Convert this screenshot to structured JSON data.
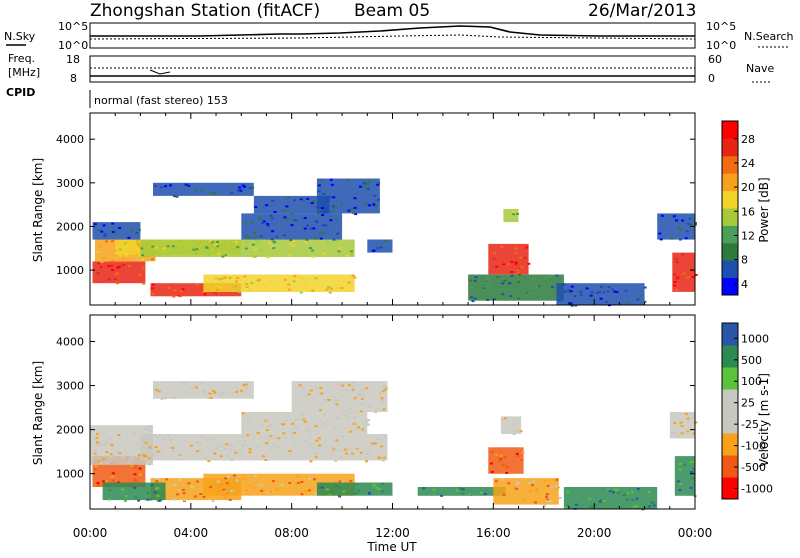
{
  "header": {
    "station": "Zhongshan Station (fitACF)",
    "beam": "Beam 05",
    "date": "26/Mar/2013"
  },
  "top_panels": {
    "nsky_label": "N.Sky",
    "nsearch_label": "N.Search",
    "freq_label_1": "Freq.",
    "freq_label_2": "[MHz]",
    "nave_label": "Nave",
    "cpid_label": "CPID",
    "cpid_value": "normal (fast stereo) 153",
    "noise_left_ticks": [
      "10^5",
      "10^0"
    ],
    "noise_right_ticks": [
      "10^5",
      "10^0"
    ],
    "freq_ticks": [
      "18",
      "8"
    ],
    "nave_ticks": [
      "60",
      "0"
    ]
  },
  "chart_data": [
    {
      "type": "heatmap",
      "name": "power-panel",
      "ylabel": "Slant Range [km]",
      "yticks": [
        1000,
        2000,
        3000,
        4000
      ],
      "ylim": [
        200,
        4600
      ],
      "colorbar_label": "Power [dB]",
      "colorbar_ticks": [
        "28",
        "24",
        "20",
        "16",
        "12",
        "8",
        "4"
      ],
      "colorscale": [
        "#0000ff",
        "#1f4fae",
        "#2d7a3c",
        "#4aa05a",
        "#a7c93a",
        "#f2d32a",
        "#f7a21a",
        "#f36b12",
        "#e82416",
        "#ff0000"
      ],
      "regions": [
        {
          "t": [
            0.1,
            2.2
          ],
          "r": [
            700,
            1200
          ],
          "c": 8
        },
        {
          "t": [
            0.2,
            2.6
          ],
          "r": [
            1200,
            1700
          ],
          "c": 6
        },
        {
          "t": [
            1.0,
            6.0
          ],
          "r": [
            1350,
            1700
          ],
          "c": 5
        },
        {
          "t": [
            0.1,
            2.0
          ],
          "r": [
            1700,
            2100
          ],
          "c": 1
        },
        {
          "t": [
            2.0,
            10.5
          ],
          "r": [
            1300,
            1700
          ],
          "c": 4
        },
        {
          "t": [
            2.4,
            6.0
          ],
          "r": [
            400,
            700
          ],
          "c": 8
        },
        {
          "t": [
            4.5,
            10.5
          ],
          "r": [
            500,
            900
          ],
          "c": 5
        },
        {
          "t": [
            6.0,
            10.0
          ],
          "r": [
            1700,
            2300
          ],
          "c": 1
        },
        {
          "t": [
            6.5,
            9.5
          ],
          "r": [
            2300,
            2700
          ],
          "c": 1
        },
        {
          "t": [
            9.0,
            11.5
          ],
          "r": [
            2300,
            3100
          ],
          "c": 1
        },
        {
          "t": [
            2.5,
            6.5
          ],
          "r": [
            2700,
            3000
          ],
          "c": 1
        },
        {
          "t": [
            11.0,
            12.0
          ],
          "r": [
            1400,
            1700
          ],
          "c": 1
        },
        {
          "t": [
            15.8,
            17.4
          ],
          "r": [
            900,
            1600
          ],
          "c": 8
        },
        {
          "t": [
            16.4,
            17.0
          ],
          "r": [
            2100,
            2400
          ],
          "c": 4
        },
        {
          "t": [
            15.0,
            18.8
          ],
          "r": [
            300,
            900
          ],
          "c": 2
        },
        {
          "t": [
            18.5,
            22.0
          ],
          "r": [
            200,
            700
          ],
          "c": 1
        },
        {
          "t": [
            23.1,
            24.0
          ],
          "r": [
            500,
            1400
          ],
          "c": 8
        },
        {
          "t": [
            22.5,
            24.0
          ],
          "r": [
            1700,
            2300
          ],
          "c": 1
        }
      ]
    },
    {
      "type": "heatmap",
      "name": "velocity-panel",
      "ylabel": "Slant Range [km]",
      "yticks": [
        1000,
        2000,
        3000,
        4000
      ],
      "ylim": [
        200,
        4600
      ],
      "colorbar_label": "Velocity [m s-1]",
      "colorbar_ticks": [
        "1000",
        "500",
        "100",
        "25",
        "-25",
        "-100",
        "-500",
        "-1000"
      ],
      "colorscale": [
        "#ff0000",
        "#f05a12",
        "#f7a21a",
        "#c8c8c0",
        "#c8c8c0",
        "#5cc23a",
        "#2d8a52",
        "#2a56a8"
      ],
      "regions": [
        {
          "t": [
            0.1,
            2.2
          ],
          "r": [
            700,
            1400
          ],
          "c": 1
        },
        {
          "t": [
            0.0,
            2.5
          ],
          "r": [
            1200,
            2100
          ],
          "c": 3
        },
        {
          "t": [
            2.0,
            11.8
          ],
          "r": [
            1300,
            1900
          ],
          "c": 3
        },
        {
          "t": [
            6.0,
            11.0
          ],
          "r": [
            1900,
            2400
          ],
          "c": 3
        },
        {
          "t": [
            8.0,
            11.8
          ],
          "r": [
            2400,
            3100
          ],
          "c": 3
        },
        {
          "t": [
            2.5,
            6.5
          ],
          "r": [
            2700,
            3100
          ],
          "c": 3
        },
        {
          "t": [
            2.4,
            6.0
          ],
          "r": [
            400,
            900
          ],
          "c": 2
        },
        {
          "t": [
            4.5,
            10.5
          ],
          "r": [
            500,
            1000
          ],
          "c": 2
        },
        {
          "t": [
            0.5,
            3.0
          ],
          "r": [
            400,
            800
          ],
          "c": 6
        },
        {
          "t": [
            9.0,
            12.0
          ],
          "r": [
            500,
            800
          ],
          "c": 6
        },
        {
          "t": [
            13.0,
            16.5
          ],
          "r": [
            500,
            700
          ],
          "c": 6
        },
        {
          "t": [
            15.8,
            17.2
          ],
          "r": [
            1000,
            1600
          ],
          "c": 1
        },
        {
          "t": [
            16.3,
            17.1
          ],
          "r": [
            1900,
            2300
          ],
          "c": 3
        },
        {
          "t": [
            16.0,
            18.6
          ],
          "r": [
            300,
            900
          ],
          "c": 2
        },
        {
          "t": [
            18.8,
            22.5
          ],
          "r": [
            200,
            700
          ],
          "c": 6
        },
        {
          "t": [
            23.2,
            24.0
          ],
          "r": [
            500,
            1400
          ],
          "c": 6
        },
        {
          "t": [
            23.0,
            24.0
          ],
          "r": [
            1800,
            2400
          ],
          "c": 3
        }
      ]
    }
  ],
  "x_axis": {
    "label": "Time UT",
    "ticks": [
      "00:00",
      "04:00",
      "08:00",
      "12:00",
      "16:00",
      "20:00",
      "00:00"
    ],
    "xlim": [
      0,
      24
    ]
  }
}
